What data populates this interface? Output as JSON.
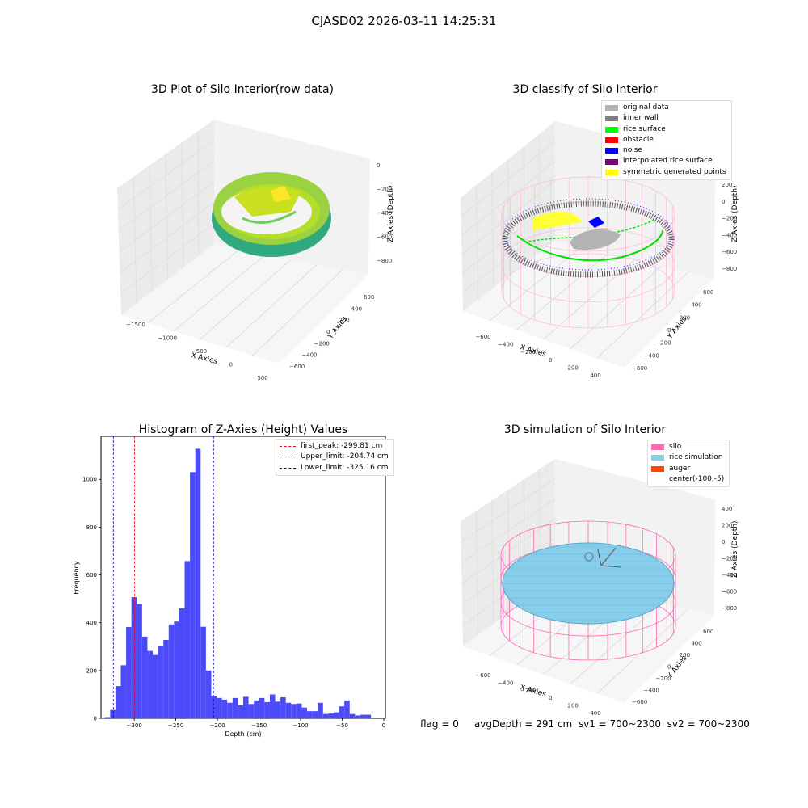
{
  "figure": {
    "suptitle": "CJASD02 2026-03-11 14:25:31",
    "footer": "flag = 0     avgDepth = 291 cm  sv1 = 700~2300  sv2 = 700~2300"
  },
  "colors": {
    "hist_bar": "#4b4bfa",
    "first_peak": "#ff0000",
    "limit_lines": "#0000cc",
    "silo_mesh": "#ff69b4",
    "rice_simulation": "#87ceeb",
    "auger": "#ff4500",
    "pane": "#f2f2f2"
  },
  "chart_data": [
    {
      "type": "scatter",
      "title": "3D Plot of Silo Interior(row data)",
      "xlabel": "X Axies",
      "ylabel": "Y Axies",
      "zlabel": "Z Axies (Depth)",
      "x_ticks": [
        "−1500",
        "−1000",
        "−500",
        "0",
        "500"
      ],
      "y_ticks": [
        "−600",
        "−400",
        "−200",
        "0",
        "200",
        "400",
        "600"
      ],
      "z_ticks": [
        "0",
        "−200",
        "−400",
        "−600",
        "−800"
      ],
      "colormap": "viridis"
    },
    {
      "type": "scatter",
      "title": "3D classify of Silo Interior",
      "xlabel": "X Axies",
      "ylabel": "Y Axies",
      "zlabel": "Z Axies (Depth)",
      "x_ticks": [
        "−600",
        "−400",
        "−200",
        "0",
        "200",
        "400"
      ],
      "y_ticks": [
        "−600",
        "−400",
        "−200",
        "0",
        "200",
        "400",
        "600"
      ],
      "z_ticks": [
        "200",
        "0",
        "−200",
        "−400",
        "−600",
        "−800"
      ],
      "z_ticks_top_partial": "00",
      "legend": [
        {
          "label": "original data",
          "color": "#b3b3b3"
        },
        {
          "label": "inner wall",
          "color": "#808080"
        },
        {
          "label": "rice surface",
          "color": "#00ff00"
        },
        {
          "label": "obstacle",
          "color": "#ff0000"
        },
        {
          "label": "noise",
          "color": "#0000ff"
        },
        {
          "label": "interpolated rice surface",
          "color": "#800080"
        },
        {
          "label": "symmetric generated points",
          "color": "#ffff00"
        }
      ]
    },
    {
      "type": "bar",
      "title": "Histogram of Z-Axies (Height) Values",
      "xlabel": "Depth (cm)",
      "ylabel": "Frequency",
      "xlim": [
        -340,
        2
      ],
      "ylim": [
        0,
        1180
      ],
      "x_ticks": [
        {
          "v": -300,
          "t": "−300"
        },
        {
          "v": -250,
          "t": "−250"
        },
        {
          "v": -200,
          "t": "−200"
        },
        {
          "v": -150,
          "t": "−150"
        },
        {
          "v": -100,
          "t": "−100"
        },
        {
          "v": -50,
          "t": "−50"
        },
        {
          "v": 0,
          "t": "0"
        }
      ],
      "y_ticks": [
        {
          "v": 0,
          "t": "0"
        },
        {
          "v": 200,
          "t": "200"
        },
        {
          "v": 400,
          "t": "400"
        },
        {
          "v": 600,
          "t": "600"
        },
        {
          "v": 800,
          "t": "800"
        },
        {
          "v": 1000,
          "t": "1000"
        }
      ],
      "bin_start": -335.4,
      "bin_width": 6.4,
      "values": [
        5,
        35,
        135,
        222,
        382,
        507,
        478,
        342,
        282,
        265,
        302,
        328,
        393,
        405,
        460,
        658,
        1030,
        1128,
        383,
        200,
        93,
        85,
        78,
        65,
        85,
        55,
        90,
        60,
        75,
        85,
        68,
        100,
        70,
        88,
        65,
        60,
        62,
        45,
        30,
        30,
        65,
        18,
        20,
        25,
        50,
        75,
        18,
        12,
        15,
        15
      ],
      "lines": [
        {
          "label": "first_peak: -299.81 cm",
          "x": -299.81,
          "color": "#ff0000"
        },
        {
          "label": "Upper_limit: -204.74 cm",
          "x": -204.74,
          "color": "#0000cc"
        },
        {
          "label": "Lower_limit: -325.16 cm",
          "x": -325.16,
          "color": "#0000cc"
        }
      ]
    },
    {
      "type": "scatter",
      "title": "3D simulation of Silo Interior",
      "xlabel": "X Axies",
      "ylabel": "Y Axies",
      "zlabel": "Z Axies (Depth)",
      "x_ticks": [
        "−600",
        "−400",
        "−200",
        "0",
        "200",
        "400"
      ],
      "y_ticks": [
        "−600",
        "−400",
        "−200",
        "0",
        "200",
        "400",
        "600"
      ],
      "z_ticks": [
        "400",
        "200",
        "0",
        "−200",
        "−400",
        "−600",
        "−800"
      ],
      "legend": [
        {
          "label": "silo",
          "color": "#ff69b4"
        },
        {
          "label": "rice simulation",
          "color": "#87ceeb"
        },
        {
          "label": "auger",
          "color": "#ff4500"
        },
        {
          "label": "center(-100,-5)",
          "color": ""
        }
      ]
    }
  ]
}
